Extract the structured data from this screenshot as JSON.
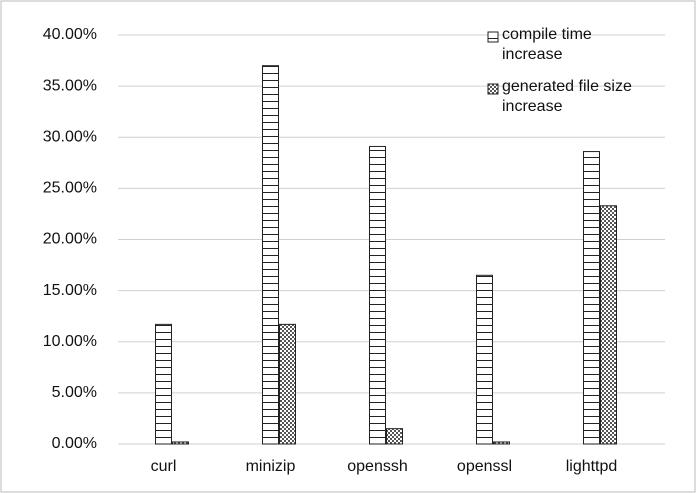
{
  "chart_data": {
    "type": "bar",
    "categories": [
      "curl",
      "minizip",
      "openssh",
      "openssl",
      "lighttpd"
    ],
    "series": [
      {
        "name": "compile time increase",
        "color": "#ffffff",
        "values": [
          11.7,
          37.0,
          29.1,
          16.5,
          28.6
        ]
      },
      {
        "name": "generated file size increase",
        "color": "#9a9a9a",
        "values": [
          0.2,
          11.7,
          1.5,
          0.2,
          23.3
        ]
      }
    ],
    "ylim": [
      0,
      40
    ],
    "yticks": [
      {
        "value": 0,
        "label": "0.00%"
      },
      {
        "value": 5,
        "label": "5.00%"
      },
      {
        "value": 10,
        "label": "10.00%"
      },
      {
        "value": 15,
        "label": "15.00%"
      },
      {
        "value": 20,
        "label": "20.00%"
      },
      {
        "value": 25,
        "label": "25.00%"
      },
      {
        "value": 30,
        "label": "30.00%"
      },
      {
        "value": 35,
        "label": "35.00%"
      },
      {
        "value": 40,
        "label": "40.00%"
      }
    ],
    "grid": true,
    "legend": "upper right"
  }
}
